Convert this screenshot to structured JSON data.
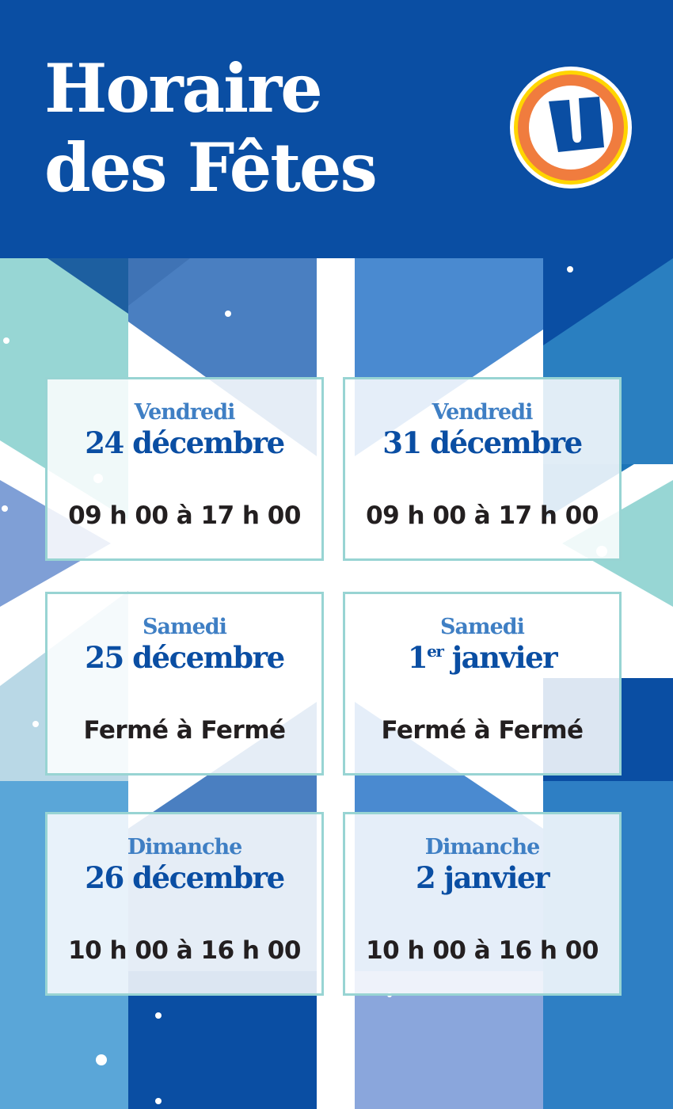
{
  "header": {
    "title_line1": "Horaire",
    "title_line2": "des Fêtes",
    "logo": "U-logo",
    "background_color": "#0a4ea3"
  },
  "schedule": [
    {
      "day": "Vendredi",
      "date": "24 décembre",
      "hours": "09 h 00 à 17 h 00"
    },
    {
      "day": "Vendredi",
      "date": "31 décembre",
      "hours": "09 h 00 à 17 h 00"
    },
    {
      "day": "Samedi",
      "date": "25 décembre",
      "hours": "Fermé à Fermé"
    },
    {
      "day": "Samedi",
      "date_num": "1",
      "date_sup": "er",
      "date_rest": " janvier",
      "hours": "Fermé à Fermé"
    },
    {
      "day": "Dimanche",
      "date": "26 décembre",
      "hours": "10 h 00 à 16 h 00"
    },
    {
      "day": "Dimanche",
      "date": "2 janvier",
      "hours": "10 h 00 à 16 h 00"
    }
  ],
  "colors": {
    "brand_blue": "#0a4ea3",
    "day_blue": "#3f7fc4",
    "card_border": "#98d4d3",
    "logo_orange": "#f07c3e",
    "logo_yellow": "#ffd500"
  }
}
